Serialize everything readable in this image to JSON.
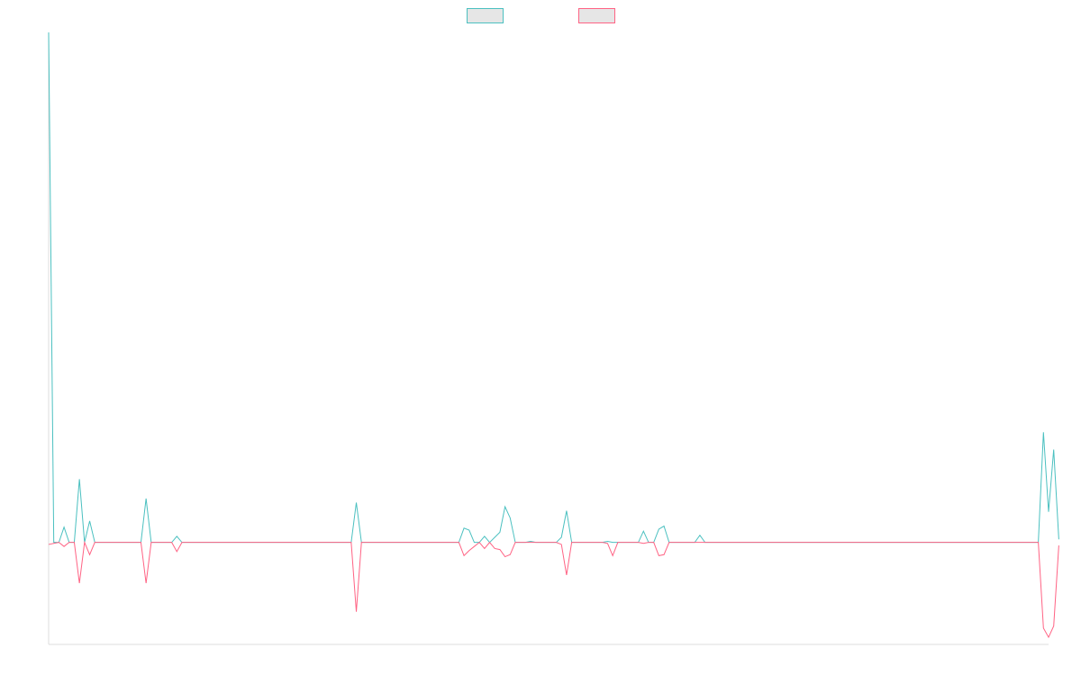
{
  "chart_data": {
    "type": "line",
    "title": "",
    "xlabel": "",
    "ylabel": "",
    "grid": false,
    "legend_position": "top-center",
    "x_count": 196,
    "ylim": [
      -10,
      50
    ],
    "series": [
      {
        "name": "",
        "color": "#4bc0c0",
        "fill": "#e6e6e6",
        "values": [
          50,
          0,
          0,
          1.5,
          0,
          0,
          6.2,
          0,
          2.1,
          0,
          0,
          0,
          0,
          0,
          0,
          0,
          0,
          0,
          0,
          4.3,
          0,
          0,
          0,
          0,
          0,
          0.6,
          0,
          0,
          0,
          0,
          0,
          0,
          0,
          0,
          0,
          0,
          0,
          0,
          0,
          0,
          0,
          0,
          0,
          0,
          0,
          0,
          0,
          0,
          0,
          0,
          0,
          0,
          0,
          0,
          0,
          0,
          0,
          0,
          0,
          0,
          3.9,
          0,
          0,
          0,
          0,
          0,
          0,
          0,
          0,
          0,
          0,
          0,
          0,
          0,
          0,
          0,
          0,
          0,
          0,
          0,
          0,
          1.4,
          1.2,
          0,
          0,
          0.6,
          0,
          0.5,
          1,
          3.5,
          2.4,
          0,
          0,
          0,
          0.1,
          0,
          0,
          0,
          0,
          0,
          0.5,
          3.1,
          0,
          0,
          0,
          0,
          0,
          0,
          0,
          0.1,
          0,
          0,
          0,
          0,
          0,
          0,
          1.1,
          0,
          0,
          1.3,
          1.6,
          0,
          0,
          0,
          0,
          0,
          0,
          0.7,
          0,
          0,
          0,
          0,
          0,
          0,
          0,
          0,
          0,
          0,
          0,
          0,
          0,
          0,
          0,
          0,
          0,
          0,
          0,
          0,
          0,
          0,
          0,
          0,
          0,
          0,
          0,
          0,
          0,
          0,
          0,
          0,
          0,
          0,
          0,
          0,
          0,
          0,
          0,
          0,
          0,
          0,
          0,
          0,
          0,
          0,
          0,
          0,
          0,
          0,
          0,
          0,
          0,
          0,
          0,
          0,
          0,
          0,
          0,
          0,
          0,
          0,
          0,
          0,
          0,
          0,
          10.8,
          3,
          9.1,
          0.3
        ]
      },
      {
        "name": "",
        "color": "#ff6384",
        "fill": "#e6e6e6",
        "values": [
          -0.2,
          -0.1,
          0,
          -0.4,
          0,
          0,
          -4,
          0,
          -1.2,
          0,
          0,
          0,
          0,
          0,
          0,
          0,
          0,
          0,
          0,
          -4,
          0,
          0,
          0,
          0,
          0,
          -0.9,
          0,
          0,
          0,
          0,
          0,
          0,
          0,
          0,
          0,
          0,
          0,
          0,
          0,
          0,
          0,
          0,
          0,
          0,
          0,
          0,
          0,
          0,
          0,
          0,
          0,
          0,
          0,
          0,
          0,
          0,
          0,
          0,
          0,
          0,
          -6.8,
          0,
          0,
          0,
          0,
          0,
          0,
          0,
          0,
          0,
          0,
          0,
          0,
          0,
          0,
          0,
          0,
          0,
          0,
          0,
          0,
          -1.3,
          -0.8,
          -0.4,
          0,
          -0.6,
          0,
          -0.6,
          -0.7,
          -1.4,
          -1.2,
          0,
          0,
          0,
          0,
          0,
          0,
          0,
          0,
          0,
          -0.2,
          -3.2,
          0,
          0,
          0,
          0,
          0,
          0,
          0,
          -0.1,
          -1.3,
          0,
          0,
          0,
          0,
          0,
          -0.1,
          0,
          0,
          -1.3,
          -1.2,
          0,
          0,
          0,
          0,
          0,
          0,
          0,
          0,
          0,
          0,
          0,
          0,
          0,
          0,
          0,
          0,
          0,
          0,
          0,
          0,
          0,
          0,
          0,
          0,
          0,
          0,
          0,
          0,
          0,
          0,
          0,
          0,
          0,
          0,
          0,
          0,
          0,
          0,
          0,
          0,
          0,
          0,
          0,
          0,
          0,
          0,
          0,
          0,
          0,
          0,
          0,
          0,
          0,
          0,
          0,
          0,
          0,
          0,
          0,
          0,
          0,
          0,
          0,
          0,
          0,
          0,
          0,
          0,
          0,
          0,
          0,
          0,
          0,
          -8.4,
          -9.3,
          -8.2,
          -0.3
        ]
      }
    ]
  }
}
